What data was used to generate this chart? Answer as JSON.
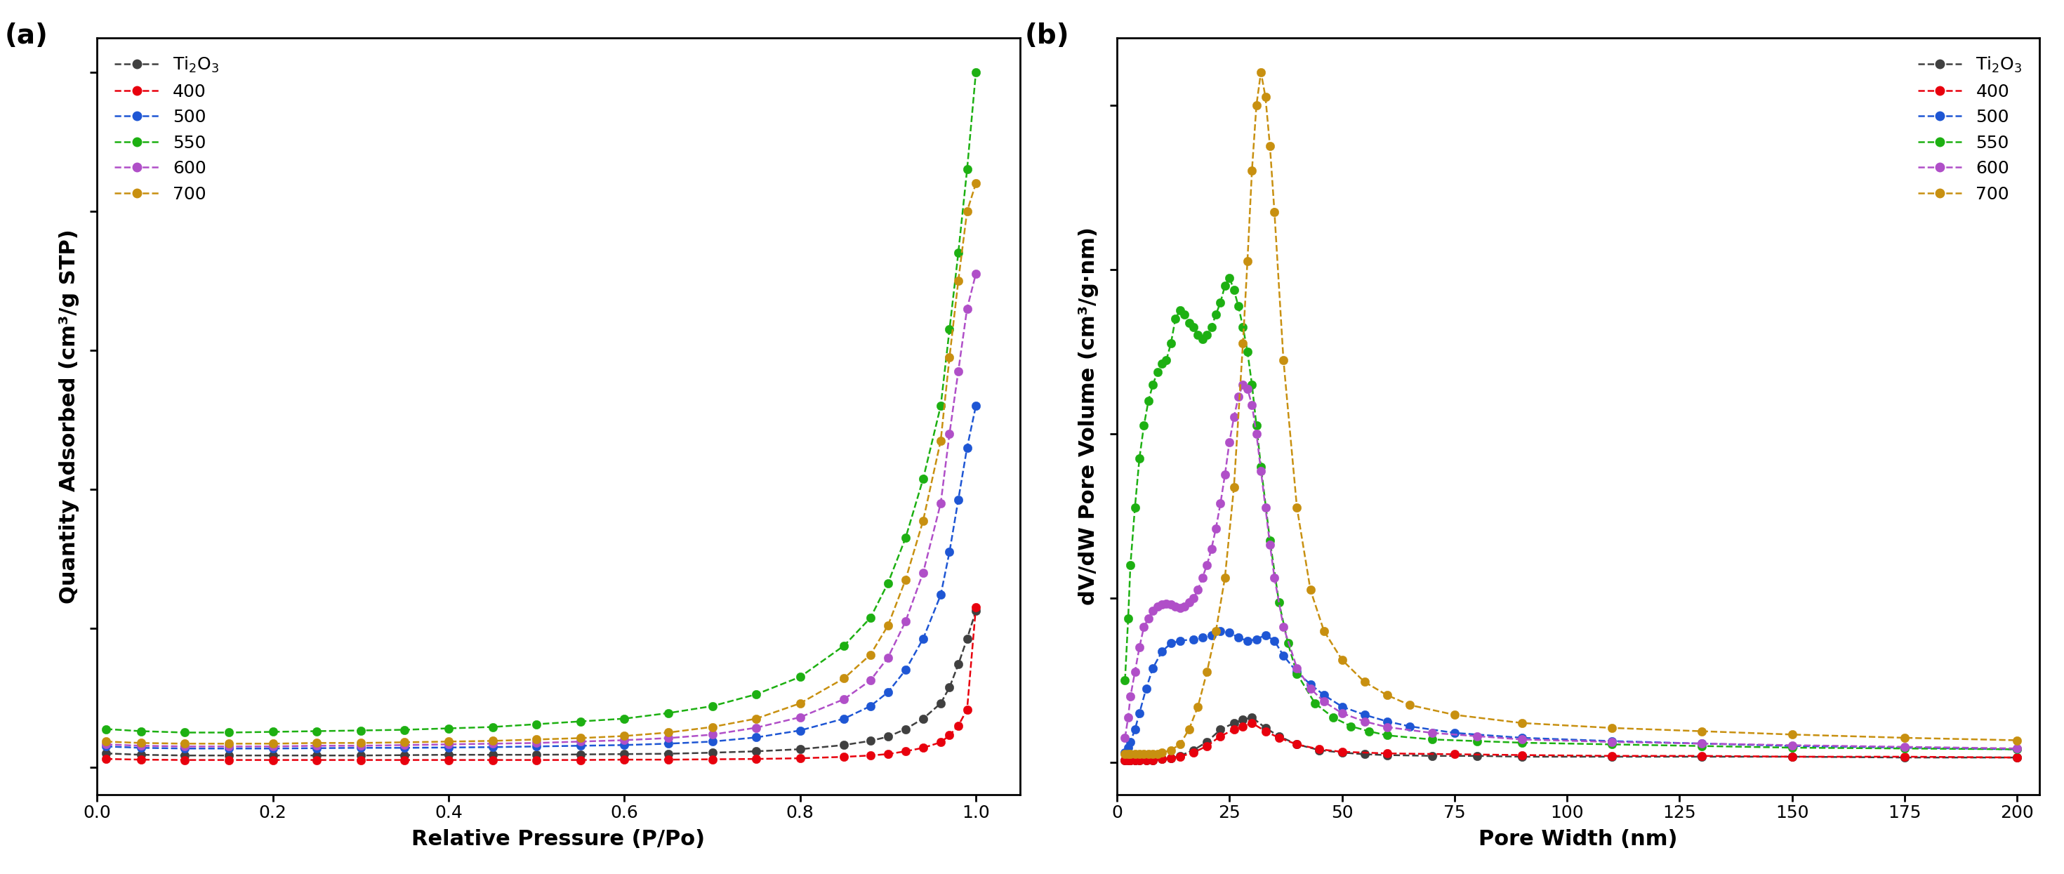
{
  "panel_a": {
    "xlabel": "Relative Pressure (P/Po)",
    "ylabel": "Quantity Adsorbed (cm³/g STP)",
    "series": {
      "Ti2O3": {
        "x": [
          0.01,
          0.05,
          0.1,
          0.15,
          0.2,
          0.25,
          0.3,
          0.35,
          0.4,
          0.45,
          0.5,
          0.55,
          0.6,
          0.65,
          0.7,
          0.75,
          0.8,
          0.85,
          0.88,
          0.9,
          0.92,
          0.94,
          0.96,
          0.97,
          0.98,
          0.99,
          1.0
        ],
        "y": [
          20,
          18,
          17,
          17,
          17,
          17,
          17,
          17.5,
          18,
          18,
          18,
          18.5,
          19,
          19.5,
          21,
          23,
          26,
          32,
          38,
          44,
          55,
          70,
          92,
          115,
          148,
          185,
          225
        ]
      },
      "400": {
        "x": [
          0.01,
          0.05,
          0.1,
          0.15,
          0.2,
          0.25,
          0.3,
          0.35,
          0.4,
          0.45,
          0.5,
          0.55,
          0.6,
          0.65,
          0.7,
          0.75,
          0.8,
          0.85,
          0.88,
          0.9,
          0.92,
          0.94,
          0.96,
          0.97,
          0.98,
          0.99,
          1.0
        ],
        "y": [
          12,
          11,
          10.5,
          10.5,
          10.5,
          10.5,
          10.5,
          10.5,
          10.5,
          10.5,
          10.5,
          10.5,
          11,
          11,
          11.5,
          12,
          13,
          15,
          17,
          19,
          23,
          28,
          36,
          46,
          60,
          83,
          230
        ]
      },
      "500": {
        "x": [
          0.01,
          0.05,
          0.1,
          0.15,
          0.2,
          0.25,
          0.3,
          0.35,
          0.4,
          0.45,
          0.5,
          0.55,
          0.6,
          0.65,
          0.7,
          0.75,
          0.8,
          0.85,
          0.88,
          0.9,
          0.92,
          0.94,
          0.96,
          0.97,
          0.98,
          0.99,
          1.0
        ],
        "y": [
          30,
          28,
          27,
          27,
          27,
          27.5,
          28,
          28,
          28.5,
          29,
          30,
          31,
          32,
          34,
          37,
          43,
          53,
          70,
          88,
          108,
          140,
          185,
          248,
          310,
          385,
          460,
          520
        ]
      },
      "550": {
        "x": [
          0.01,
          0.05,
          0.1,
          0.15,
          0.2,
          0.25,
          0.3,
          0.35,
          0.4,
          0.45,
          0.5,
          0.55,
          0.6,
          0.65,
          0.7,
          0.75,
          0.8,
          0.85,
          0.88,
          0.9,
          0.92,
          0.94,
          0.96,
          0.97,
          0.98,
          0.99,
          1.0
        ],
        "y": [
          55,
          52,
          50,
          50,
          51,
          52,
          53,
          54,
          56,
          58,
          62,
          66,
          70,
          78,
          88,
          105,
          130,
          175,
          215,
          265,
          330,
          415,
          520,
          630,
          740,
          860,
          1000
        ]
      },
      "600": {
        "x": [
          0.01,
          0.05,
          0.1,
          0.15,
          0.2,
          0.25,
          0.3,
          0.35,
          0.4,
          0.45,
          0.5,
          0.55,
          0.6,
          0.65,
          0.7,
          0.75,
          0.8,
          0.85,
          0.88,
          0.9,
          0.92,
          0.94,
          0.96,
          0.97,
          0.98,
          0.99,
          1.0
        ],
        "y": [
          33,
          31,
          30,
          30,
          30,
          31,
          31,
          32,
          33,
          34,
          35,
          37,
          39,
          42,
          47,
          57,
          72,
          98,
          125,
          158,
          210,
          280,
          380,
          480,
          570,
          660,
          710
        ]
      },
      "700": {
        "x": [
          0.01,
          0.05,
          0.1,
          0.15,
          0.2,
          0.25,
          0.3,
          0.35,
          0.4,
          0.45,
          0.5,
          0.55,
          0.6,
          0.65,
          0.7,
          0.75,
          0.8,
          0.85,
          0.88,
          0.9,
          0.92,
          0.94,
          0.96,
          0.97,
          0.98,
          0.99,
          1.0
        ],
        "y": [
          37,
          35,
          34,
          34,
          34,
          35,
          35,
          36,
          37,
          38,
          40,
          42,
          45,
          50,
          58,
          70,
          92,
          128,
          162,
          204,
          270,
          355,
          470,
          590,
          700,
          800,
          840
        ]
      }
    }
  },
  "panel_b": {
    "xlabel": "Pore Width (nm)",
    "ylabel": "dV/dW Pore Volume (cm³/g·nm)",
    "xticks": [
      0,
      25,
      50,
      75,
      100,
      125,
      150,
      175,
      200
    ],
    "series": {
      "Ti2O3": {
        "x": [
          1.8,
          2.5,
          3.0,
          4.0,
          5.0,
          6.5,
          8.0,
          10.0,
          12.0,
          14.0,
          17.0,
          20.0,
          23.0,
          26.0,
          28.0,
          30.0,
          33.0,
          36.0,
          40.0,
          45.0,
          50.0,
          55.0,
          60.0,
          70.0,
          80.0,
          90.0,
          110.0,
          130.0,
          150.0,
          175.0,
          200.0
        ],
        "y": [
          0.003,
          0.003,
          0.003,
          0.003,
          0.003,
          0.003,
          0.003,
          0.004,
          0.005,
          0.008,
          0.015,
          0.025,
          0.04,
          0.048,
          0.052,
          0.055,
          0.042,
          0.032,
          0.022,
          0.015,
          0.012,
          0.01,
          0.009,
          0.008,
          0.008,
          0.007,
          0.007,
          0.007,
          0.007,
          0.006,
          0.006
        ]
      },
      "400": {
        "x": [
          1.8,
          2.5,
          3.0,
          4.0,
          5.0,
          6.5,
          8.0,
          10.0,
          12.0,
          14.0,
          17.0,
          20.0,
          23.0,
          26.0,
          28.0,
          30.0,
          33.0,
          36.0,
          40.0,
          45.0,
          50.0,
          60.0,
          75.0,
          90.0,
          110.0,
          130.0,
          150.0,
          175.0,
          200.0
        ],
        "y": [
          0.003,
          0.003,
          0.003,
          0.003,
          0.003,
          0.003,
          0.003,
          0.004,
          0.005,
          0.007,
          0.012,
          0.02,
          0.032,
          0.04,
          0.044,
          0.048,
          0.038,
          0.03,
          0.022,
          0.016,
          0.013,
          0.011,
          0.01,
          0.009,
          0.008,
          0.008,
          0.007,
          0.007,
          0.006
        ]
      },
      "500": {
        "x": [
          1.8,
          2.5,
          3.0,
          4.0,
          5.0,
          6.5,
          8.0,
          10.0,
          12.0,
          14.0,
          17.0,
          19.0,
          21.0,
          23.0,
          25.0,
          27.0,
          29.0,
          31.0,
          33.0,
          35.0,
          37.0,
          40.0,
          43.0,
          46.0,
          50.0,
          55.0,
          60.0,
          65.0,
          75.0,
          90.0,
          110.0,
          130.0,
          150.0,
          175.0,
          200.0
        ],
        "y": [
          0.012,
          0.018,
          0.025,
          0.04,
          0.06,
          0.09,
          0.115,
          0.135,
          0.145,
          0.148,
          0.15,
          0.152,
          0.155,
          0.16,
          0.158,
          0.152,
          0.148,
          0.15,
          0.155,
          0.148,
          0.13,
          0.11,
          0.095,
          0.082,
          0.068,
          0.058,
          0.05,
          0.044,
          0.036,
          0.03,
          0.026,
          0.023,
          0.02,
          0.018,
          0.016
        ]
      },
      "550": {
        "x": [
          1.8,
          2.5,
          3.0,
          4.0,
          5.0,
          6.0,
          7.0,
          8.0,
          9.0,
          10.0,
          11.0,
          12.0,
          13.0,
          14.0,
          15.0,
          16.0,
          17.0,
          18.0,
          19.0,
          20.0,
          21.0,
          22.0,
          23.0,
          24.0,
          25.0,
          26.0,
          27.0,
          28.0,
          29.0,
          30.0,
          31.0,
          32.0,
          34.0,
          36.0,
          38.0,
          40.0,
          44.0,
          48.0,
          52.0,
          56.0,
          60.0,
          70.0,
          80.0,
          90.0,
          110.0,
          130.0,
          150.0,
          175.0,
          200.0
        ],
        "y": [
          0.1,
          0.175,
          0.24,
          0.31,
          0.37,
          0.41,
          0.44,
          0.46,
          0.475,
          0.485,
          0.49,
          0.51,
          0.54,
          0.55,
          0.545,
          0.535,
          0.53,
          0.52,
          0.515,
          0.52,
          0.53,
          0.545,
          0.56,
          0.58,
          0.59,
          0.575,
          0.555,
          0.53,
          0.5,
          0.46,
          0.41,
          0.36,
          0.27,
          0.195,
          0.145,
          0.108,
          0.072,
          0.055,
          0.044,
          0.038,
          0.033,
          0.028,
          0.026,
          0.024,
          0.022,
          0.02,
          0.018,
          0.017,
          0.016
        ]
      },
      "600": {
        "x": [
          1.8,
          2.5,
          3.0,
          4.0,
          5.0,
          6.0,
          7.0,
          8.0,
          9.0,
          10.0,
          11.0,
          12.0,
          13.0,
          14.0,
          15.0,
          16.0,
          17.0,
          18.0,
          19.0,
          20.0,
          21.0,
          22.0,
          23.0,
          24.0,
          25.0,
          26.0,
          27.0,
          28.0,
          29.0,
          30.0,
          31.0,
          32.0,
          33.0,
          34.0,
          35.0,
          37.0,
          40.0,
          43.0,
          46.0,
          50.0,
          55.0,
          60.0,
          70.0,
          80.0,
          90.0,
          110.0,
          130.0,
          150.0,
          175.0,
          200.0
        ],
        "y": [
          0.03,
          0.055,
          0.08,
          0.11,
          0.14,
          0.165,
          0.175,
          0.185,
          0.19,
          0.192,
          0.193,
          0.192,
          0.19,
          0.188,
          0.19,
          0.195,
          0.2,
          0.21,
          0.225,
          0.24,
          0.26,
          0.285,
          0.315,
          0.35,
          0.39,
          0.42,
          0.445,
          0.46,
          0.455,
          0.435,
          0.4,
          0.355,
          0.31,
          0.265,
          0.225,
          0.165,
          0.115,
          0.09,
          0.074,
          0.06,
          0.05,
          0.043,
          0.036,
          0.032,
          0.028,
          0.025,
          0.023,
          0.021,
          0.019,
          0.017
        ]
      },
      "700": {
        "x": [
          1.8,
          2.5,
          3.0,
          4.0,
          5.0,
          6.0,
          7.0,
          8.0,
          9.0,
          10.0,
          12.0,
          14.0,
          16.0,
          18.0,
          20.0,
          22.0,
          24.0,
          26.0,
          28.0,
          29.0,
          30.0,
          31.0,
          32.0,
          33.0,
          34.0,
          35.0,
          37.0,
          40.0,
          43.0,
          46.0,
          50.0,
          55.0,
          60.0,
          65.0,
          75.0,
          90.0,
          110.0,
          130.0,
          150.0,
          175.0,
          200.0
        ],
        "y": [
          0.01,
          0.01,
          0.01,
          0.01,
          0.01,
          0.01,
          0.01,
          0.01,
          0.01,
          0.012,
          0.015,
          0.022,
          0.04,
          0.068,
          0.11,
          0.16,
          0.225,
          0.335,
          0.51,
          0.61,
          0.72,
          0.8,
          0.84,
          0.81,
          0.75,
          0.67,
          0.49,
          0.31,
          0.21,
          0.16,
          0.125,
          0.098,
          0.082,
          0.07,
          0.058,
          0.048,
          0.042,
          0.038,
          0.034,
          0.03,
          0.027
        ]
      }
    }
  },
  "colors": {
    "Ti2O3": "#404040",
    "400": "#e8000d",
    "500": "#1e56d4",
    "550": "#1db012",
    "600": "#b04fc8",
    "700": "#c89010"
  }
}
